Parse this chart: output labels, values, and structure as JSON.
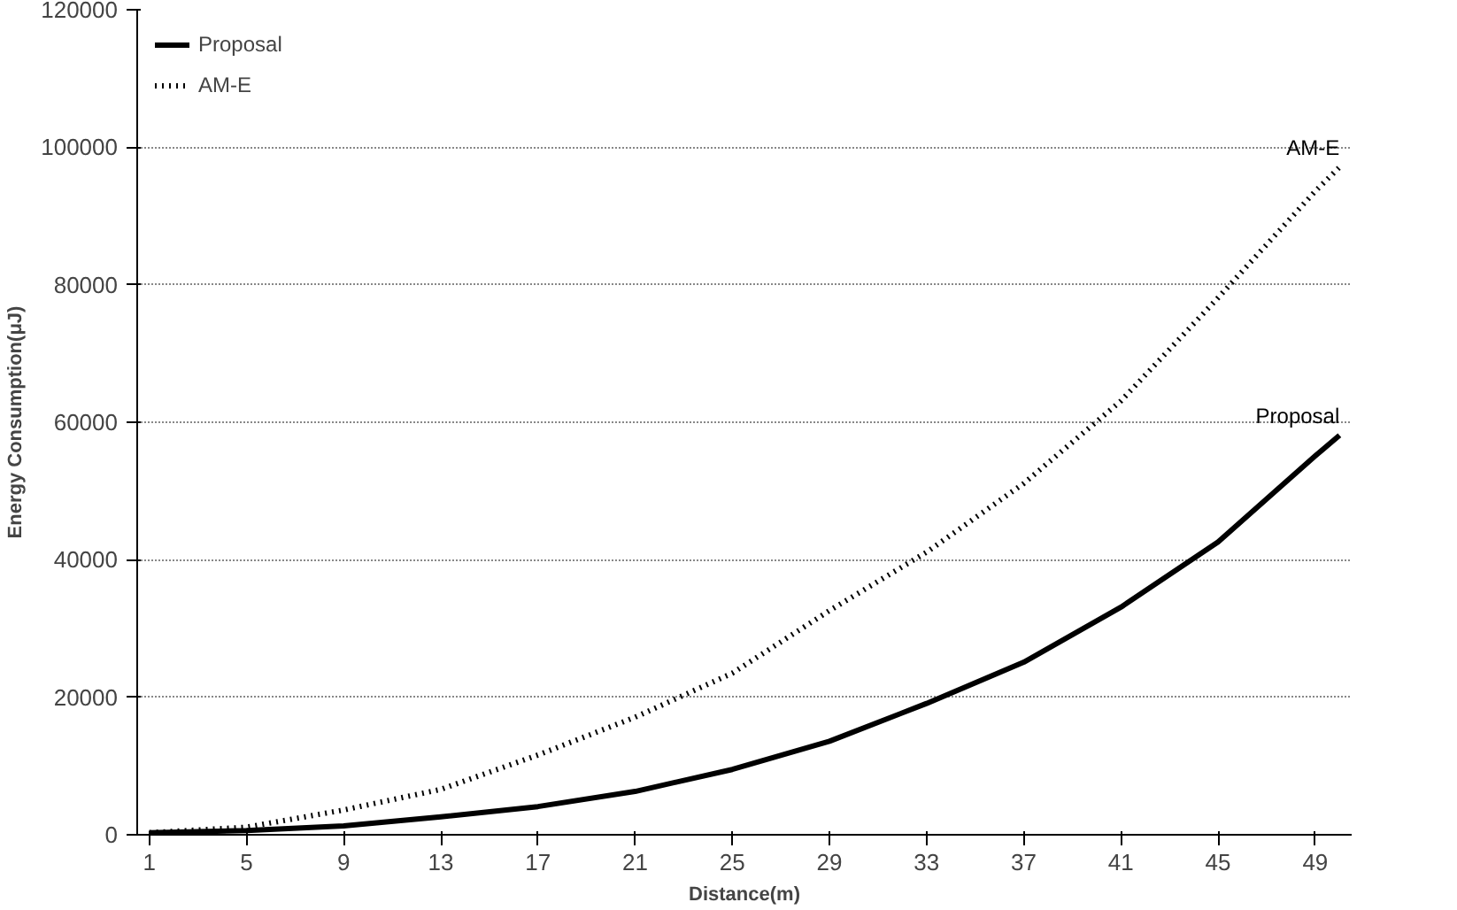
{
  "chart_data": {
    "type": "line",
    "xlabel": "Distance(m)",
    "ylabel": "Energy Consumption(μJ)",
    "x": [
      1,
      5,
      9,
      13,
      17,
      21,
      25,
      29,
      33,
      37,
      41,
      45,
      49,
      50
    ],
    "xlim": [
      0.5,
      50.5
    ],
    "xticks": [
      1,
      5,
      9,
      13,
      17,
      21,
      25,
      29,
      33,
      37,
      41,
      45,
      49
    ],
    "ylim": [
      0,
      120000
    ],
    "yticks": [
      0,
      20000,
      40000,
      60000,
      80000,
      100000,
      120000
    ],
    "grid": "y",
    "legend": "top left",
    "series": [
      {
        "name": "Proposal",
        "color": "#000000",
        "line_style": "solid",
        "values": [
          300,
          600,
          1300,
          2600,
          4100,
          6300,
          9500,
          13600,
          19100,
          25100,
          33100,
          42600,
          55100,
          58100
        ]
      },
      {
        "name": "AM-E",
        "color": "#000000",
        "line_style": "dotted",
        "values": [
          300,
          1100,
          3600,
          6600,
          11600,
          17100,
          23500,
          32600,
          41100,
          51100,
          63100,
          78100,
          93600,
          97100
        ]
      }
    ]
  }
}
